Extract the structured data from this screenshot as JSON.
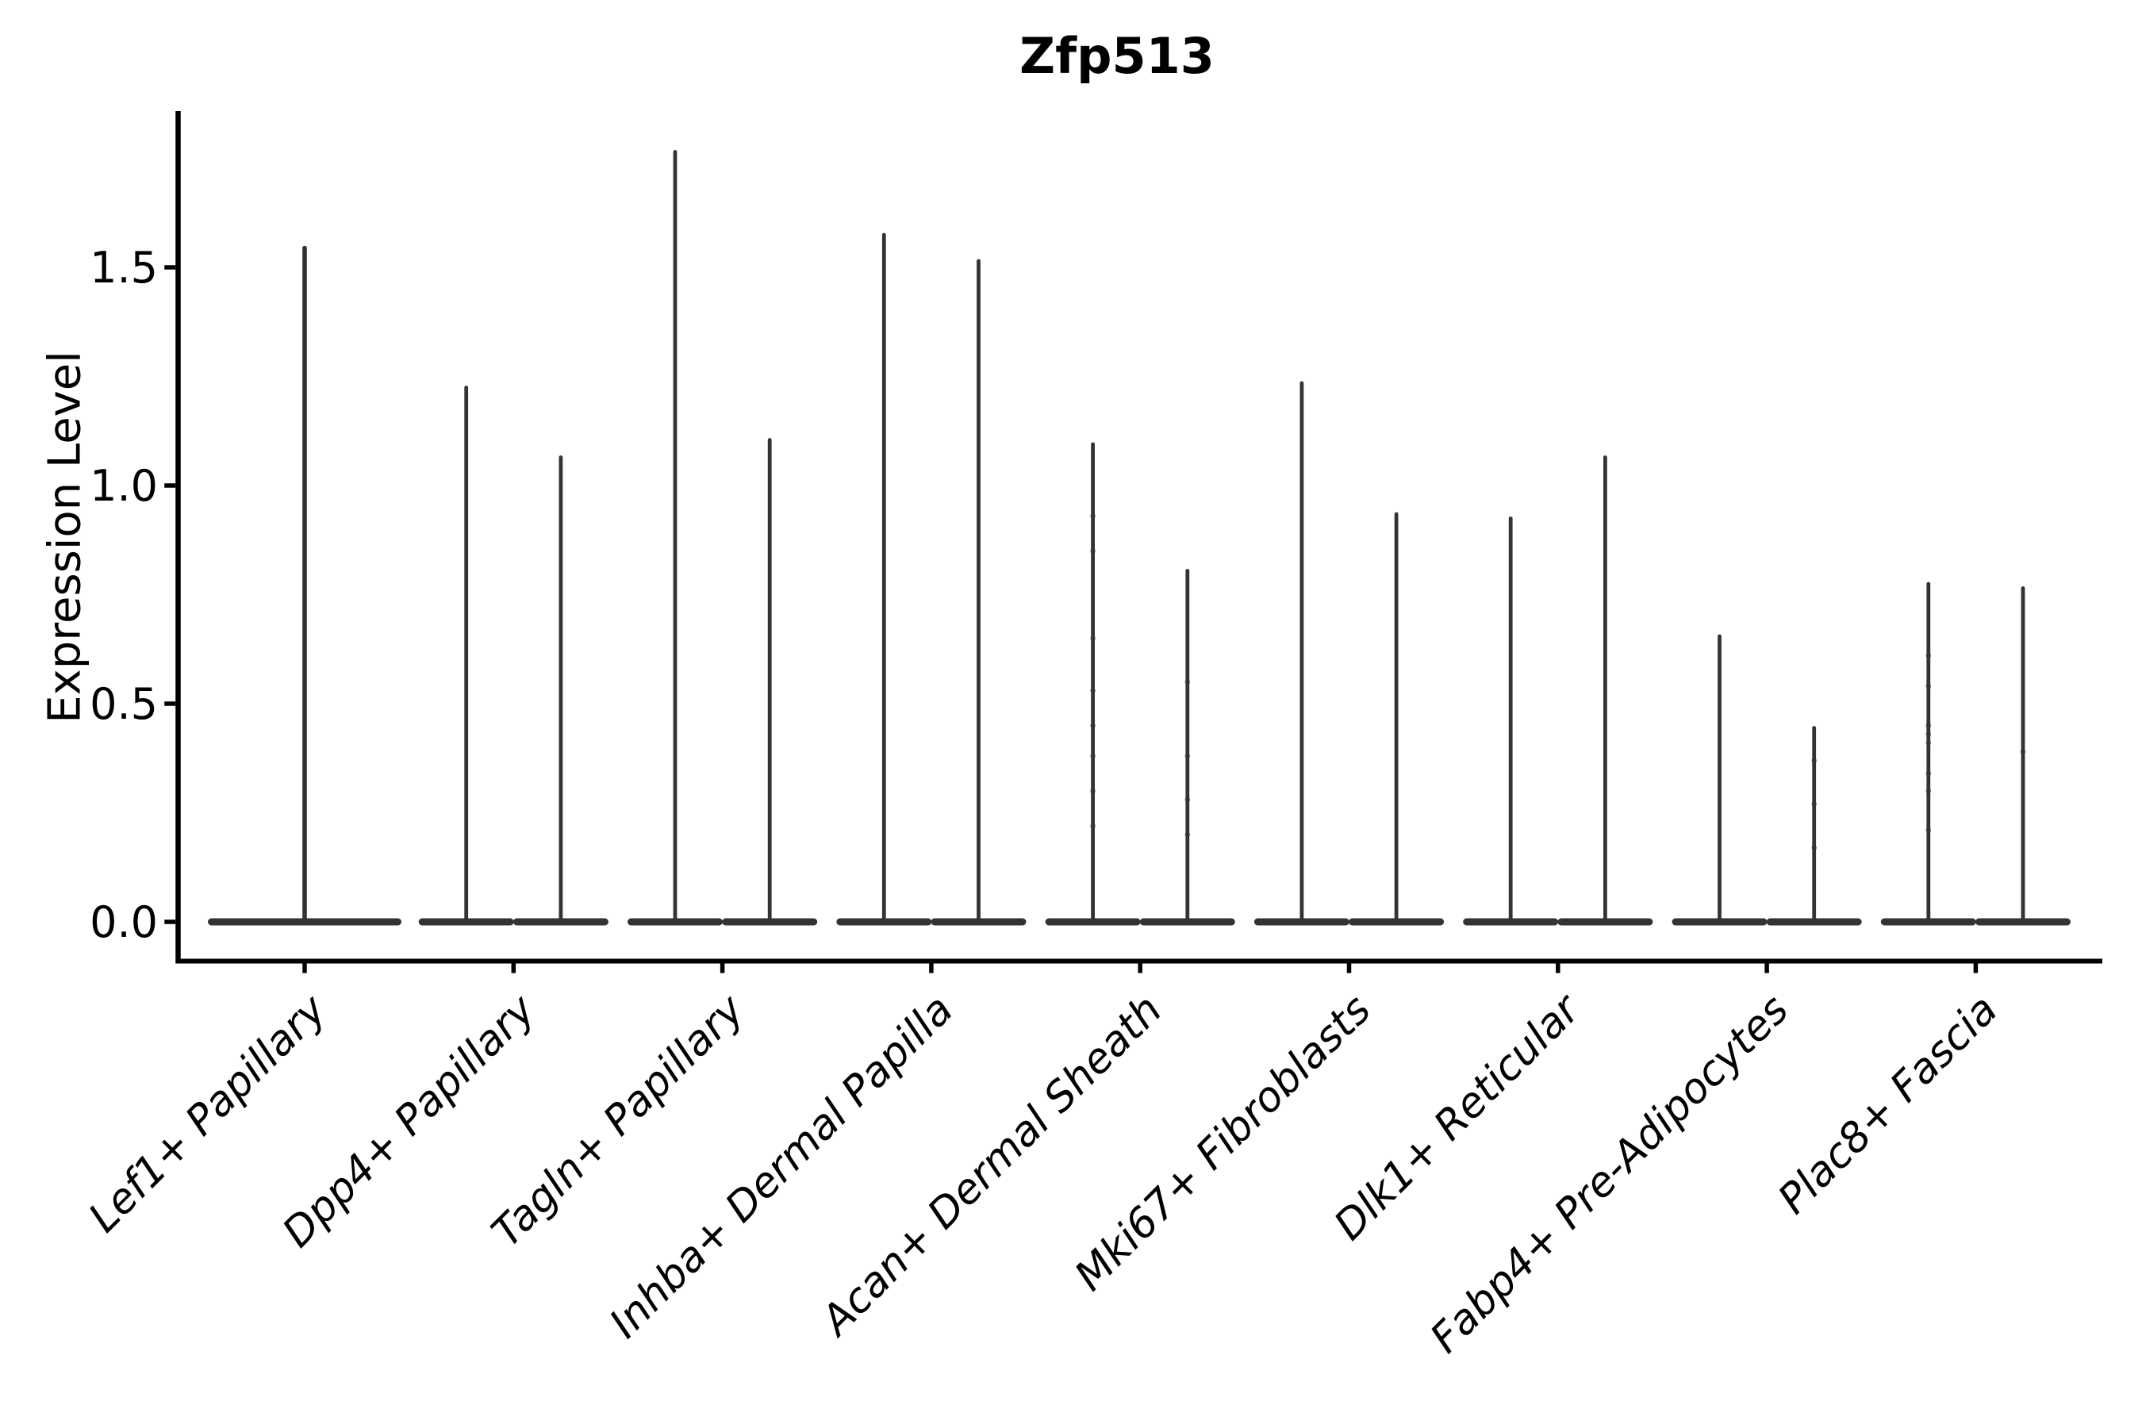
{
  "chart_data": {
    "type": "violin",
    "title": "Zfp513",
    "ylabel": "Expression Level",
    "xlabel": "",
    "grid": false,
    "legend": "none",
    "ylim": [
      -0.09,
      1.86
    ],
    "ytick_labels": [
      "0.0",
      "0.5",
      "1.0",
      "1.5"
    ],
    "ytick_values": [
      0.0,
      0.5,
      1.0,
      1.5
    ],
    "categories": [
      "Lef1+ Papillary",
      "Dpp4+ Papillary",
      "Tagln+ Papillary",
      "Inhba+ Dermal Papilla",
      "Acan+ Dermal Sheath",
      "Mki67+ Fibroblasts",
      "Dlk1+ Reticular",
      "Fabp4+ Pre-Adipocytes",
      "Plac8+ Fascia"
    ],
    "description": "Zero-inflated expression violins: wide flat density at 0 with a thin spike up to the max expressing cell value",
    "groups": [
      {
        "label": "Lef1+ Papillary",
        "violins": [
          {
            "max": 1.55,
            "points": []
          }
        ]
      },
      {
        "label": "Dpp4+ Papillary",
        "violins": [
          {
            "max": 1.23,
            "points": []
          },
          {
            "max": 1.07,
            "points": []
          }
        ]
      },
      {
        "label": "Tagln+ Papillary",
        "violins": [
          {
            "max": 1.77,
            "points": []
          },
          {
            "max": 1.11,
            "points": []
          }
        ]
      },
      {
        "label": "Inhba+ Dermal Papilla",
        "violins": [
          {
            "max": 1.58,
            "points": []
          },
          {
            "max": 1.52,
            "points": []
          }
        ]
      },
      {
        "label": "Acan+ Dermal Sheath",
        "violins": [
          {
            "max": 1.1,
            "points": [
              0.93,
              0.85,
              0.65,
              0.53,
              0.45,
              0.38,
              0.3,
              0.22
            ]
          },
          {
            "max": 0.81,
            "points": [
              0.55,
              0.38,
              0.28,
              0.2
            ]
          }
        ]
      },
      {
        "label": "Mki67+ Fibroblasts",
        "violins": [
          {
            "max": 1.24,
            "points": []
          },
          {
            "max": 0.94,
            "points": []
          }
        ]
      },
      {
        "label": "Dlk1+ Reticular",
        "violins": [
          {
            "max": 0.93,
            "points": []
          },
          {
            "max": 1.07,
            "points": []
          }
        ]
      },
      {
        "label": "Fabp4+ Pre-Adipocytes",
        "violins": [
          {
            "max": 0.66,
            "points": []
          },
          {
            "max": 0.45,
            "points": [
              0.37,
              0.27,
              0.17
            ]
          }
        ]
      },
      {
        "label": "Plac8+ Fascia",
        "violins": [
          {
            "max": 0.78,
            "points": [
              0.61,
              0.54,
              0.45,
              0.43,
              0.41,
              0.34,
              0.3,
              0.21
            ]
          },
          {
            "max": 0.77,
            "points": [
              0.39
            ]
          }
        ]
      }
    ],
    "colors": {
      "violin": "#333333",
      "axis": "#000000",
      "background": "#ffffff"
    }
  }
}
